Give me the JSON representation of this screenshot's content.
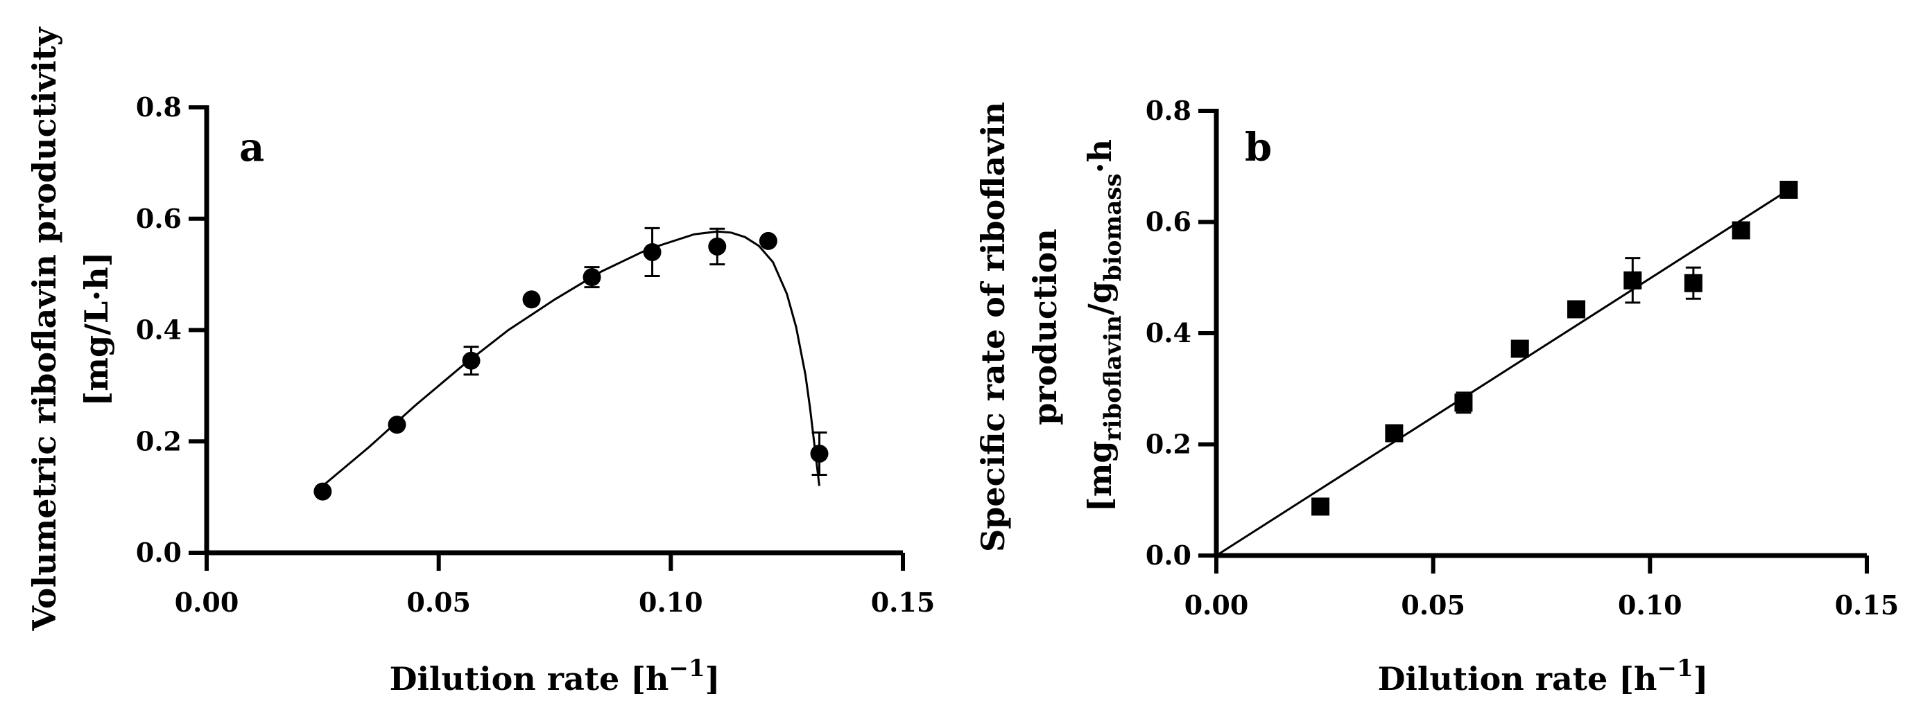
{
  "chart_data": [
    {
      "panel": "a",
      "type": "scatter",
      "marker": "circle",
      "xlabel_main": "Dilution rate [h",
      "xlabel_sup": "−1",
      "xlabel_close": "]",
      "ylabel_line1": "Volumetric riboflavin productivity",
      "ylabel_line2": "[mg/L·h]",
      "xlim": [
        0,
        0.15
      ],
      "ylim": [
        0,
        0.8
      ],
      "x_ticks": [
        "0.00",
        "0.05",
        "0.10",
        "0.15"
      ],
      "y_ticks": [
        "0.0",
        "0.2",
        "0.4",
        "0.6",
        "0.8"
      ],
      "points": [
        {
          "x": 0.025,
          "y": 0.11,
          "err": 0
        },
        {
          "x": 0.041,
          "y": 0.23,
          "err": 0
        },
        {
          "x": 0.057,
          "y": 0.345,
          "err": 0.025
        },
        {
          "x": 0.07,
          "y": 0.455,
          "err": 0
        },
        {
          "x": 0.083,
          "y": 0.495,
          "err": 0.018
        },
        {
          "x": 0.096,
          "y": 0.54,
          "err": 0.043
        },
        {
          "x": 0.11,
          "y": 0.55,
          "err": 0.032
        },
        {
          "x": 0.121,
          "y": 0.56,
          "err": 0
        },
        {
          "x": 0.132,
          "y": 0.178,
          "err": 0.038
        }
      ],
      "fit": {
        "kind": "curve",
        "x": [
          0.025,
          0.035,
          0.045,
          0.055,
          0.065,
          0.075,
          0.085,
          0.095,
          0.105,
          0.11,
          0.113,
          0.116,
          0.119,
          0.122,
          0.125,
          0.127,
          0.129,
          0.13,
          0.131,
          0.132
        ],
        "y": [
          0.12,
          0.19,
          0.265,
          0.335,
          0.4,
          0.455,
          0.505,
          0.545,
          0.572,
          0.577,
          0.575,
          0.567,
          0.551,
          0.522,
          0.465,
          0.405,
          0.32,
          0.26,
          0.19,
          0.12
        ]
      }
    },
    {
      "panel": "b",
      "type": "scatter",
      "marker": "square",
      "xlabel_main": "Dilution rate [h",
      "xlabel_sup": "−1",
      "xlabel_close": "]",
      "ylabel_line1": "Specific rate of riboflavin",
      "ylabel_line2": "production",
      "ylabel_line3": {
        "open": "[mg",
        "sub1": "riboflavin",
        "mid": "/g",
        "sub2": "biomass",
        "close": "·h"
      },
      "xlim": [
        0,
        0.15
      ],
      "ylim": [
        0,
        0.8
      ],
      "x_ticks": [
        "0.00",
        "0.05",
        "0.10",
        "0.15"
      ],
      "y_ticks": [
        "0.0",
        "0.2",
        "0.4",
        "0.6",
        "0.8"
      ],
      "points": [
        {
          "x": 0.024,
          "y": 0.088,
          "err": 0
        },
        {
          "x": 0.041,
          "y": 0.22,
          "err": 0
        },
        {
          "x": 0.057,
          "y": 0.275,
          "err": 0.018
        },
        {
          "x": 0.07,
          "y": 0.372,
          "err": 0
        },
        {
          "x": 0.083,
          "y": 0.443,
          "err": 0
        },
        {
          "x": 0.096,
          "y": 0.495,
          "err": 0.04
        },
        {
          "x": 0.11,
          "y": 0.49,
          "err": 0.028
        },
        {
          "x": 0.121,
          "y": 0.585,
          "err": 0
        },
        {
          "x": 0.132,
          "y": 0.658,
          "err": 0
        }
      ],
      "fit": {
        "kind": "line",
        "x": [
          0,
          0.132
        ],
        "y": [
          0.0,
          0.658
        ]
      }
    }
  ]
}
